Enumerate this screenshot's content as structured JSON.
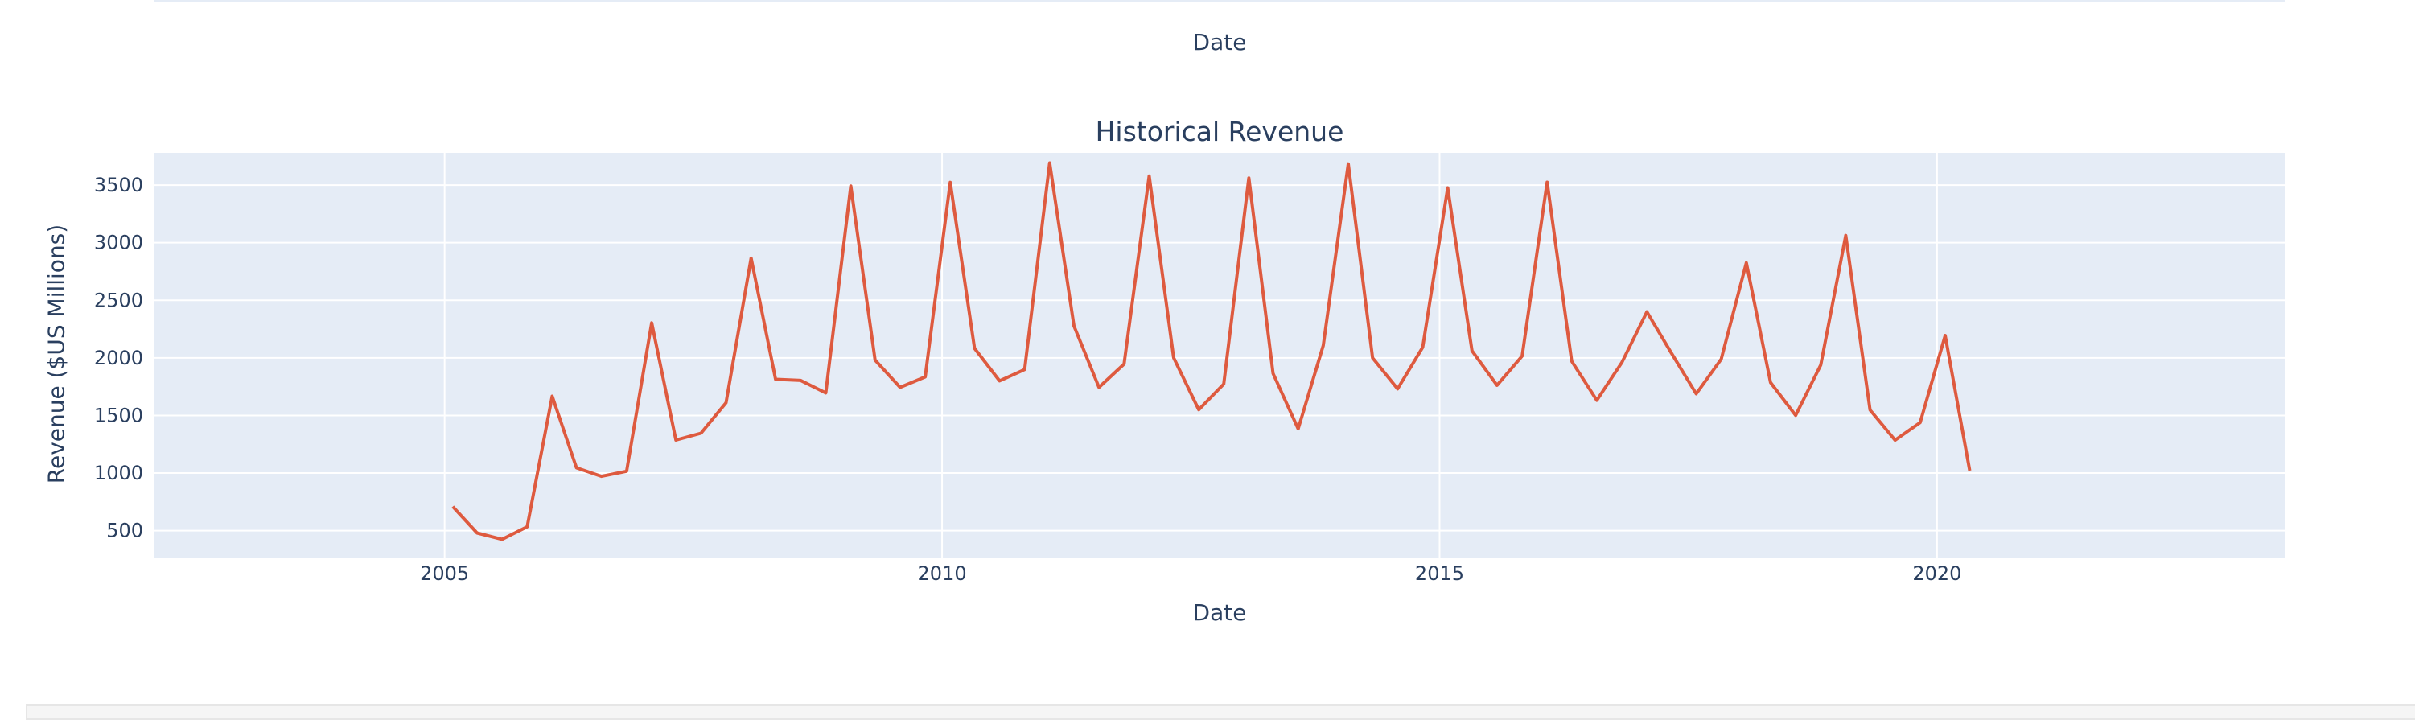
{
  "top_panel": {
    "xlabel": "Date"
  },
  "chart_data": {
    "type": "line",
    "title": "Historical Revenue",
    "xlabel": "Date",
    "ylabel": "Revenue ($US Millions)",
    "xlim": [
      "2002-02-01",
      "2023-06-30"
    ],
    "ylim": [
      260,
      3780
    ],
    "xticks": [
      2005,
      2010,
      2015,
      2020
    ],
    "yticks": [
      500,
      1000,
      1500,
      2000,
      2500,
      3000,
      3500
    ],
    "grid": true,
    "line_color": "#de5a3f",
    "plot_bg": "#e5ecf6",
    "series": [
      {
        "x": [
          "2005-01-31",
          "2005-04-30",
          "2005-07-31",
          "2005-10-31",
          "2006-01-31",
          "2006-04-30",
          "2006-07-31",
          "2006-10-31",
          "2007-01-31",
          "2007-04-30",
          "2007-07-31",
          "2007-10-31",
          "2008-01-31",
          "2008-04-30",
          "2008-07-31",
          "2008-10-31",
          "2009-01-31",
          "2009-04-30",
          "2009-07-31",
          "2009-10-31",
          "2010-01-31",
          "2010-04-30",
          "2010-07-31",
          "2010-10-31",
          "2011-01-31",
          "2011-04-30",
          "2011-07-31",
          "2011-10-31",
          "2012-01-31",
          "2012-04-30",
          "2012-07-31",
          "2012-10-31",
          "2013-01-31",
          "2013-04-30",
          "2013-07-31",
          "2013-10-31",
          "2014-01-31",
          "2014-04-30",
          "2014-07-31",
          "2014-10-31",
          "2015-01-31",
          "2015-04-30",
          "2015-07-31",
          "2015-10-31",
          "2016-01-31",
          "2016-04-30",
          "2016-07-31",
          "2016-10-31",
          "2017-01-31",
          "2017-04-30",
          "2017-07-31",
          "2017-10-31",
          "2018-01-31",
          "2018-04-30",
          "2018-07-31",
          "2018-10-31",
          "2019-01-31",
          "2019-04-30",
          "2019-07-31",
          "2019-10-31",
          "2020-01-31",
          "2020-04-30"
        ],
        "values": [
          709,
          480,
          425,
          534,
          1667,
          1046,
          972,
          1016,
          2304,
          1287,
          1346,
          1611,
          2866,
          1814,
          1804,
          1696,
          3492,
          1981,
          1744,
          1835,
          3524,
          2083,
          1801,
          1899,
          3693,
          2278,
          1744,
          1947,
          3579,
          2002,
          1550,
          1773,
          3562,
          1865,
          1384,
          2107,
          3684,
          2000,
          1731,
          2092,
          3476,
          2061,
          1762,
          2016,
          3525,
          1972,
          1632,
          1959,
          2400,
          2046,
          1688,
          1989,
          2825,
          1786,
          1501,
          1938,
          3063,
          1548,
          1286,
          1439,
          2194,
          1021
        ]
      }
    ]
  }
}
